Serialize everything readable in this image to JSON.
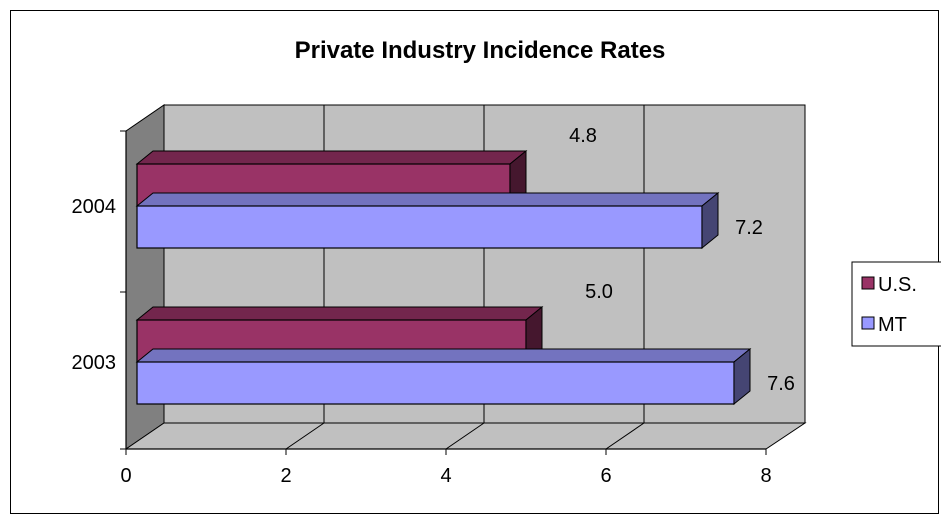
{
  "chart_data": {
    "type": "bar",
    "orientation": "horizontal",
    "style": "3d-clustered",
    "title": "Private Industry Incidence Rates",
    "categories": [
      "2003",
      "2004"
    ],
    "series": [
      {
        "name": "U.S.",
        "values": [
          5.0,
          4.8
        ],
        "labels": [
          "5.0",
          "4.8"
        ],
        "color": "#993366"
      },
      {
        "name": "MT",
        "values": [
          7.6,
          7.2
        ],
        "labels": [
          "7.6",
          "7.2"
        ],
        "color": "#9999ff"
      }
    ],
    "x_ticks": [
      "0",
      "2",
      "4",
      "6",
      "8"
    ],
    "xlim": [
      0,
      8
    ],
    "grid": true,
    "legend_position": "right",
    "colors": {
      "wall": "#c0c0c0",
      "side_wall": "#808080",
      "floor": "#c0c0c0"
    }
  }
}
